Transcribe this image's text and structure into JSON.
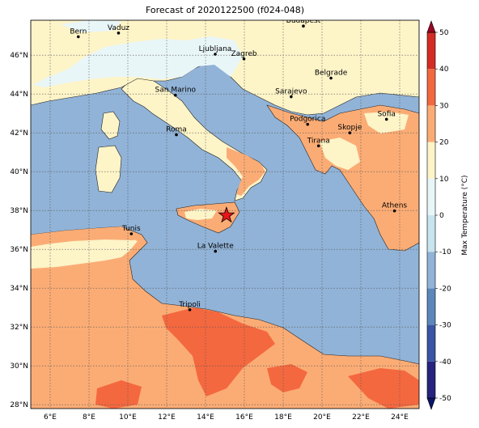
{
  "title": "Forecast of 2020122500 (f024-048)",
  "map": {
    "lon_range": [
      5,
      25
    ],
    "lat_range": [
      27.8,
      47.8
    ],
    "lon_ticks": [
      {
        "value": 6,
        "label": "6°E"
      },
      {
        "value": 8,
        "label": "8°E"
      },
      {
        "value": 10,
        "label": "10°E"
      },
      {
        "value": 12,
        "label": "12°E"
      },
      {
        "value": 14,
        "label": "14°E"
      },
      {
        "value": 16,
        "label": "16°E"
      },
      {
        "value": 18,
        "label": "18°E"
      },
      {
        "value": 20,
        "label": "20°E"
      },
      {
        "value": 22,
        "label": "22°E"
      },
      {
        "value": 24,
        "label": "24°E"
      }
    ],
    "lat_ticks": [
      {
        "value": 28,
        "label": "28°N"
      },
      {
        "value": 30,
        "label": "30°N"
      },
      {
        "value": 32,
        "label": "32°N"
      },
      {
        "value": 34,
        "label": "34°N"
      },
      {
        "value": 36,
        "label": "36°N"
      },
      {
        "value": 38,
        "label": "38°N"
      },
      {
        "value": 40,
        "label": "40°N"
      },
      {
        "value": 42,
        "label": "42°N"
      },
      {
        "value": 44,
        "label": "44°N"
      },
      {
        "value": 46,
        "label": "46°N"
      }
    ],
    "gridlines": true,
    "sea_color": "#91b3d7",
    "cities": [
      {
        "name": "Bern",
        "lon": 7.45,
        "lat": 46.95
      },
      {
        "name": "Vaduz",
        "lon": 9.52,
        "lat": 47.14
      },
      {
        "name": "Budapest",
        "lon": 19.04,
        "lat": 47.5
      },
      {
        "name": "Ljubljana",
        "lon": 14.5,
        "lat": 46.05
      },
      {
        "name": "Zagreb",
        "lon": 15.98,
        "lat": 45.81
      },
      {
        "name": "Belgrade",
        "lon": 20.46,
        "lat": 44.82
      },
      {
        "name": "San Marino",
        "lon": 12.45,
        "lat": 43.94
      },
      {
        "name": "Sarajevo",
        "lon": 18.41,
        "lat": 43.86
      },
      {
        "name": "Sofia",
        "lon": 23.32,
        "lat": 42.7
      },
      {
        "name": "Podgorica",
        "lon": 19.26,
        "lat": 42.44
      },
      {
        "name": "Skopje",
        "lon": 21.43,
        "lat": 42.0
      },
      {
        "name": "Roma",
        "lon": 12.5,
        "lat": 41.9
      },
      {
        "name": "Tirana",
        "lon": 19.82,
        "lat": 41.33
      },
      {
        "name": "Athens",
        "lon": 23.73,
        "lat": 37.98
      },
      {
        "name": "Tunis",
        "lon": 10.18,
        "lat": 36.8
      },
      {
        "name": "La Valette",
        "lon": 14.51,
        "lat": 35.9
      },
      {
        "name": "Tripoli",
        "lon": 13.19,
        "lat": 32.89
      }
    ],
    "marker": {
      "lon": 15.08,
      "lat": 37.75,
      "color": "#e8141a"
    }
  },
  "colorbar": {
    "label": "Max Temperature (°C)",
    "min": -50,
    "max": 50,
    "ticks": [
      -50,
      -40,
      -30,
      -20,
      -10,
      0,
      10,
      20,
      30,
      40,
      50
    ],
    "bins": [
      {
        "from": -50,
        "to": -40,
        "color": "#26247e"
      },
      {
        "from": -40,
        "to": -30,
        "color": "#3a55a4"
      },
      {
        "from": -30,
        "to": -20,
        "color": "#5b87bb"
      },
      {
        "from": -20,
        "to": -10,
        "color": "#91b3d7"
      },
      {
        "from": -10,
        "to": 0,
        "color": "#c7e4ef"
      },
      {
        "from": 0,
        "to": 10,
        "color": "#e9f6f8"
      },
      {
        "from": 10,
        "to": 20,
        "color": "#fdf4c8"
      },
      {
        "from": 20,
        "to": 30,
        "color": "#fbac75"
      },
      {
        "from": 30,
        "to": 40,
        "color": "#f4683f"
      },
      {
        "from": 40,
        "to": 50,
        "color": "#d42c25"
      }
    ],
    "under_color": "#0d1566",
    "over_color": "#9b0526"
  }
}
